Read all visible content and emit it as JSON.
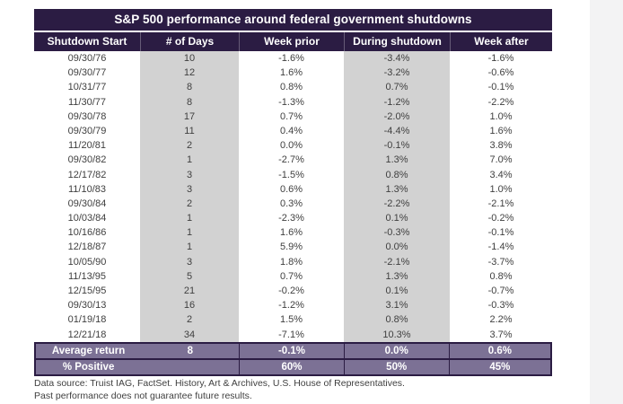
{
  "chart_data": {
    "type": "table",
    "title": "S&P 500 performance around federal government shutdowns",
    "columns": [
      "Shutdown Start",
      "# of Days",
      "Week prior",
      "During shutdown",
      "Week after"
    ],
    "column_ids": [
      "shutdown-start",
      "num-days",
      "week-prior",
      "during-shutdown",
      "week-after"
    ],
    "rows": [
      [
        "09/30/76",
        "10",
        "-1.6%",
        "-3.4%",
        "-1.6%"
      ],
      [
        "09/30/77",
        "12",
        "1.6%",
        "-3.2%",
        "-0.6%"
      ],
      [
        "10/31/77",
        "8",
        "0.8%",
        "0.7%",
        "-0.1%"
      ],
      [
        "11/30/77",
        "8",
        "-1.3%",
        "-1.2%",
        "-2.2%"
      ],
      [
        "09/30/78",
        "17",
        "0.7%",
        "-2.0%",
        "1.0%"
      ],
      [
        "09/30/79",
        "11",
        "0.4%",
        "-4.4%",
        "1.6%"
      ],
      [
        "11/20/81",
        "2",
        "0.0%",
        "-0.1%",
        "3.8%"
      ],
      [
        "09/30/82",
        "1",
        "-2.7%",
        "1.3%",
        "7.0%"
      ],
      [
        "12/17/82",
        "3",
        "-1.5%",
        "0.8%",
        "3.4%"
      ],
      [
        "11/10/83",
        "3",
        "0.6%",
        "1.3%",
        "1.0%"
      ],
      [
        "09/30/84",
        "2",
        "0.3%",
        "-2.2%",
        "-2.1%"
      ],
      [
        "10/03/84",
        "1",
        "-2.3%",
        "0.1%",
        "-0.2%"
      ],
      [
        "10/16/86",
        "1",
        "1.6%",
        "-0.3%",
        "-0.1%"
      ],
      [
        "12/18/87",
        "1",
        "5.9%",
        "0.0%",
        "-1.4%"
      ],
      [
        "10/05/90",
        "3",
        "1.8%",
        "-2.1%",
        "-3.7%"
      ],
      [
        "11/13/95",
        "5",
        "0.7%",
        "1.3%",
        "0.8%"
      ],
      [
        "12/15/95",
        "21",
        "-0.2%",
        "0.1%",
        "-0.7%"
      ],
      [
        "09/30/13",
        "16",
        "-1.2%",
        "3.1%",
        "-0.3%"
      ],
      [
        "01/19/18",
        "2",
        "1.5%",
        "0.8%",
        "2.2%"
      ],
      [
        "12/21/18",
        "34",
        "-7.1%",
        "10.3%",
        "3.7%"
      ]
    ],
    "summary_rows": [
      {
        "id": "average-return",
        "cells": [
          "Average return",
          "8",
          "-0.1%",
          "0.0%",
          "0.6%"
        ]
      },
      {
        "id": "percent-positive",
        "cells": [
          "% Positive",
          "",
          "60%",
          "50%",
          "45%"
        ]
      }
    ],
    "shaded_column_indexes": [
      1,
      3
    ]
  },
  "footer": {
    "source_line": "Data source: Truist IAG, FactSet. History, Art & Archives, U.S. House of Representatives.",
    "disclaimer_line": "Past performance does not guarantee future results."
  },
  "colors": {
    "header_bg": "#2b1c43",
    "summary_bg": "#7c7195",
    "shaded_column_bg": "#d2d2d2",
    "body_text": "#3f3f3f",
    "gutter_bg": "#f3f3f4"
  }
}
